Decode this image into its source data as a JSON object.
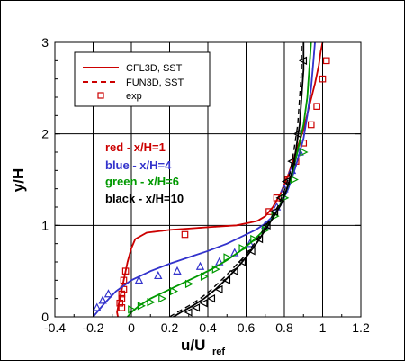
{
  "chart_data": {
    "type": "line",
    "xlabel": "u/U",
    "xlabel_sub": "ref",
    "ylabel": "y/H",
    "xlim": [
      -0.4,
      1.2
    ],
    "ylim": [
      0,
      3
    ],
    "xticks": [
      "-0.4",
      "-0.2",
      "0",
      "0.2",
      "0.4",
      "0.6",
      "0.8",
      "1",
      "1.2"
    ],
    "yticks": [
      "0",
      "1",
      "2",
      "3"
    ],
    "grid": true,
    "legend_position": "top-left",
    "legend": [
      {
        "label": "CFL3D, SST",
        "style": "solid-line",
        "color": "#cc0000"
      },
      {
        "label": "FUN3D, SST",
        "style": "dashed-line",
        "color": "#cc0000"
      },
      {
        "label": "exp",
        "style": "symbol",
        "color": "#cc0000"
      }
    ],
    "annotations": [
      {
        "text": "red - x/H=1",
        "color": "#cc0000"
      },
      {
        "text": "blue - x/H=4",
        "color": "#3333cc"
      },
      {
        "text": "green - x/H=6",
        "color": "#009900"
      },
      {
        "text": "black - x/H=10",
        "color": "#000000"
      }
    ],
    "series": [
      {
        "color": "#cc0000",
        "station": "x/H=1",
        "marker": "square",
        "cfl3d": {
          "x": [
            -0.07,
            -0.075,
            -0.07,
            -0.06,
            -0.04,
            -0.02,
            0.0,
            0.02,
            0.08,
            0.2,
            0.4,
            0.55,
            0.62,
            0.66,
            0.7,
            0.74,
            0.78,
            0.82,
            0.86,
            0.9,
            0.93,
            0.96,
            0.98,
            0.99,
            1.0
          ],
          "y": [
            0.0,
            0.05,
            0.1,
            0.2,
            0.4,
            0.6,
            0.75,
            0.85,
            0.92,
            0.95,
            0.98,
            1.0,
            1.03,
            1.05,
            1.1,
            1.2,
            1.35,
            1.55,
            1.8,
            2.05,
            2.3,
            2.55,
            2.75,
            2.9,
            3.0
          ]
        },
        "fun3d": {
          "x": [
            -0.07,
            -0.075,
            -0.07,
            -0.06,
            -0.04,
            -0.02,
            0.0,
            0.02,
            0.08,
            0.2,
            0.4,
            0.55,
            0.62,
            0.66,
            0.7,
            0.74,
            0.78,
            0.82,
            0.86,
            0.9,
            0.93,
            0.96,
            0.98,
            0.99,
            1.0
          ],
          "y": [
            0.0,
            0.05,
            0.1,
            0.2,
            0.4,
            0.6,
            0.75,
            0.85,
            0.92,
            0.95,
            0.98,
            1.0,
            1.03,
            1.05,
            1.1,
            1.2,
            1.35,
            1.55,
            1.8,
            2.05,
            2.3,
            2.55,
            2.75,
            2.9,
            3.0
          ]
        },
        "exp": {
          "x": [
            -0.05,
            -0.06,
            -0.05,
            -0.05,
            -0.04,
            -0.04,
            -0.03,
            0.28,
            0.72,
            0.76,
            0.82,
            0.86,
            0.9,
            0.94,
            0.97,
            1.0,
            1.02
          ],
          "y": [
            0.1,
            0.15,
            0.2,
            0.25,
            0.3,
            0.4,
            0.5,
            0.9,
            1.15,
            1.3,
            1.5,
            1.7,
            1.9,
            2.1,
            2.3,
            2.6,
            2.8
          ]
        }
      },
      {
        "color": "#3333cc",
        "station": "x/H=4",
        "marker": "triangle-up",
        "cfl3d": {
          "x": [
            -0.2,
            -0.18,
            -0.14,
            -0.08,
            0.0,
            0.1,
            0.2,
            0.3,
            0.4,
            0.5,
            0.58,
            0.65,
            0.7,
            0.74,
            0.78,
            0.82,
            0.86,
            0.9,
            0.92,
            0.94,
            0.95,
            0.96
          ],
          "y": [
            0.0,
            0.05,
            0.15,
            0.28,
            0.4,
            0.5,
            0.58,
            0.65,
            0.72,
            0.8,
            0.88,
            0.95,
            1.02,
            1.1,
            1.22,
            1.4,
            1.65,
            1.95,
            2.2,
            2.5,
            2.75,
            3.0
          ]
        },
        "fun3d": {
          "x": [
            -0.2,
            -0.18,
            -0.14,
            -0.08,
            0.0,
            0.1,
            0.2,
            0.3,
            0.4,
            0.5,
            0.58,
            0.65,
            0.7,
            0.74,
            0.78,
            0.82,
            0.86,
            0.9,
            0.92,
            0.94,
            0.95,
            0.96
          ],
          "y": [
            0.0,
            0.05,
            0.15,
            0.28,
            0.4,
            0.5,
            0.58,
            0.65,
            0.72,
            0.8,
            0.88,
            0.95,
            1.02,
            1.1,
            1.22,
            1.4,
            1.65,
            1.95,
            2.2,
            2.5,
            2.75,
            3.0
          ]
        },
        "exp": {
          "x": [
            -0.18,
            -0.15,
            -0.12,
            0.04,
            0.14,
            0.24,
            0.36,
            0.46,
            0.54,
            0.62,
            0.7,
            0.76,
            0.8,
            0.84,
            0.88
          ],
          "y": [
            0.1,
            0.18,
            0.25,
            0.4,
            0.45,
            0.5,
            0.55,
            0.6,
            0.7,
            0.8,
            1.0,
            1.2,
            1.4,
            1.6,
            1.8
          ]
        }
      },
      {
        "color": "#009900",
        "station": "x/H=6",
        "marker": "triangle-right",
        "cfl3d": {
          "x": [
            -0.02,
            0.0,
            0.04,
            0.1,
            0.18,
            0.26,
            0.34,
            0.42,
            0.5,
            0.57,
            0.63,
            0.68,
            0.72,
            0.76,
            0.8,
            0.84,
            0.87,
            0.9,
            0.92,
            0.93,
            0.94
          ],
          "y": [
            0.0,
            0.05,
            0.12,
            0.2,
            0.28,
            0.36,
            0.44,
            0.52,
            0.62,
            0.72,
            0.82,
            0.92,
            1.02,
            1.15,
            1.32,
            1.55,
            1.82,
            2.1,
            2.4,
            2.7,
            3.0
          ]
        },
        "fun3d": {
          "x": [
            -0.02,
            0.0,
            0.04,
            0.1,
            0.18,
            0.26,
            0.34,
            0.42,
            0.5,
            0.57,
            0.63,
            0.68,
            0.72,
            0.76,
            0.8,
            0.84,
            0.87,
            0.9,
            0.92,
            0.93,
            0.94
          ],
          "y": [
            0.0,
            0.05,
            0.12,
            0.2,
            0.28,
            0.36,
            0.44,
            0.52,
            0.62,
            0.72,
            0.82,
            0.92,
            1.02,
            1.15,
            1.32,
            1.55,
            1.82,
            2.1,
            2.4,
            2.7,
            3.0
          ]
        },
        "exp": {
          "x": [
            0.0,
            0.05,
            0.1,
            0.16,
            0.22,
            0.3,
            0.38,
            0.44,
            0.5,
            0.58,
            0.64,
            0.7,
            0.75,
            0.8,
            0.85,
            0.9
          ],
          "y": [
            0.08,
            0.12,
            0.16,
            0.2,
            0.28,
            0.36,
            0.44,
            0.52,
            0.65,
            0.75,
            0.85,
            0.95,
            1.1,
            1.3,
            1.5,
            1.8
          ]
        }
      },
      {
        "color": "#000000",
        "station": "x/H=10",
        "marker": "triangle-left",
        "cfl3d": {
          "x": [
            0.22,
            0.26,
            0.32,
            0.38,
            0.44,
            0.5,
            0.56,
            0.61,
            0.66,
            0.7,
            0.74,
            0.78,
            0.81,
            0.84,
            0.86,
            0.88,
            0.89,
            0.9,
            0.9
          ],
          "y": [
            0.0,
            0.05,
            0.12,
            0.2,
            0.3,
            0.42,
            0.55,
            0.68,
            0.82,
            0.95,
            1.08,
            1.22,
            1.38,
            1.58,
            1.82,
            2.1,
            2.4,
            2.7,
            3.0
          ]
        },
        "fun3d": {
          "x": [
            0.2,
            0.24,
            0.3,
            0.36,
            0.42,
            0.48,
            0.54,
            0.6,
            0.65,
            0.69,
            0.73,
            0.77,
            0.8,
            0.83,
            0.85,
            0.87,
            0.88,
            0.89,
            0.89
          ],
          "y": [
            0.0,
            0.05,
            0.12,
            0.2,
            0.3,
            0.42,
            0.55,
            0.68,
            0.82,
            0.95,
            1.08,
            1.22,
            1.38,
            1.58,
            1.82,
            2.1,
            2.4,
            2.7,
            3.0
          ]
        },
        "exp": {
          "x": [
            0.3,
            0.34,
            0.38,
            0.42,
            0.46,
            0.5,
            0.54,
            0.58,
            0.63,
            0.67,
            0.71,
            0.75,
            0.78,
            0.81,
            0.84,
            0.87,
            0.9
          ],
          "y": [
            0.05,
            0.1,
            0.15,
            0.2,
            0.3,
            0.4,
            0.5,
            0.6,
            0.72,
            0.85,
            1.0,
            1.15,
            1.3,
            1.48,
            1.7,
            2.0,
            2.8
          ]
        }
      }
    ]
  }
}
